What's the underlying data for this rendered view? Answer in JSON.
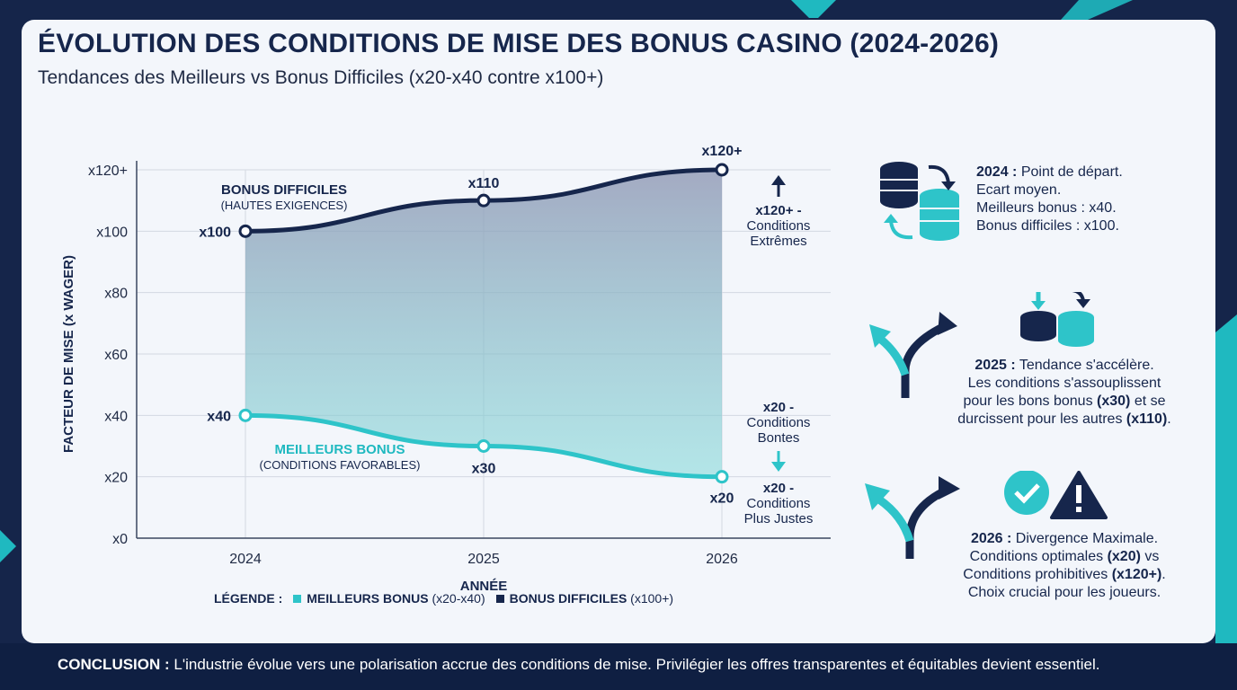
{
  "header": {
    "title": "ÉVOLUTION DES CONDITIONS DE MISE DES BONUS CASINO (2024-2026)",
    "subtitle": "Tendances des Meilleurs vs Bonus Difficiles (x20-x40 contre x100+)"
  },
  "colors": {
    "background": "#15254a",
    "card": "#f3f6fb",
    "navy": "#16264c",
    "teal": "#2ec4c9",
    "accent_teal": "#1fb9c0"
  },
  "chart_data": {
    "type": "line",
    "x": [
      "2024",
      "2025",
      "2026"
    ],
    "xlabel": "ANNÉE",
    "ylabel": "FACTEUR DE MISE (x WAGER)",
    "ylim": [
      0,
      120
    ],
    "y_ticks": [
      0,
      20,
      40,
      60,
      80,
      100,
      120
    ],
    "y_tick_labels": [
      "x0",
      "x20",
      "x40",
      "x60",
      "x80",
      "x100",
      "x120+"
    ],
    "grid": true,
    "series": [
      {
        "name": "BONUS DIFFICILES",
        "sub": "(HAUTES EXIGENCES)",
        "color": "#16264c",
        "values": [
          100,
          110,
          120
        ],
        "point_labels": [
          "x100",
          "x110",
          "x120+"
        ]
      },
      {
        "name": "MEILLEURS BONUS",
        "sub": "(CONDITIONS FAVORABLES)",
        "color": "#2ec4c9",
        "values": [
          40,
          30,
          20
        ],
        "point_labels": [
          "x40",
          "x30",
          "x20"
        ]
      }
    ],
    "annotations": {
      "top_bold": "x120+ -",
      "top_lines": [
        "Conditions",
        "Extrêmes"
      ],
      "mid_bold": "x20 -",
      "mid_lines": [
        "Conditions",
        "Bontes"
      ],
      "bot_bold": "x20 -",
      "bot_lines": [
        "Conditions",
        "Plus Justes"
      ]
    },
    "legend": {
      "title": "LÉGENDE :",
      "items": [
        {
          "name": "MEILLEURS BONUS",
          "range": "(x20-x40)",
          "color": "#2ec4c9"
        },
        {
          "name": "BONUS DIFFICILES",
          "range": "(x100+)",
          "color": "#16264c"
        }
      ]
    }
  },
  "side": {
    "p2024": {
      "year": "2024 :",
      "lines": [
        "Point de départ.",
        "Ecart moyen.",
        "Meilleurs bonus : x40.",
        "Bonus difficiles : x100."
      ]
    },
    "p2025": {
      "year": "2025 :",
      "l1": "Tendance s'accélère.",
      "l2": "Les conditions s'assouplissent",
      "l3a": "pour les bons bonus ",
      "l3b": "(x30)",
      "l3c": " et se",
      "l4a": "durcissent pour les autres ",
      "l4b": "(x110)",
      "l4c": "."
    },
    "p2026": {
      "year": "2026 :",
      "l1": "Divergence Maximale.",
      "l2a": "Conditions optimales ",
      "l2b": "(x20)",
      "l2c": " vs",
      "l3a": "Conditions prohibitives ",
      "l3b": "(x120+)",
      "l3c": ".",
      "l4": "Choix crucial pour les joueurs."
    }
  },
  "conclusion": {
    "label": "CONCLUSION :",
    "text": " L'industrie évolue vers une polarisation accrue des conditions de mise. Privilégier les offres transparentes et équitables devient essentiel."
  }
}
